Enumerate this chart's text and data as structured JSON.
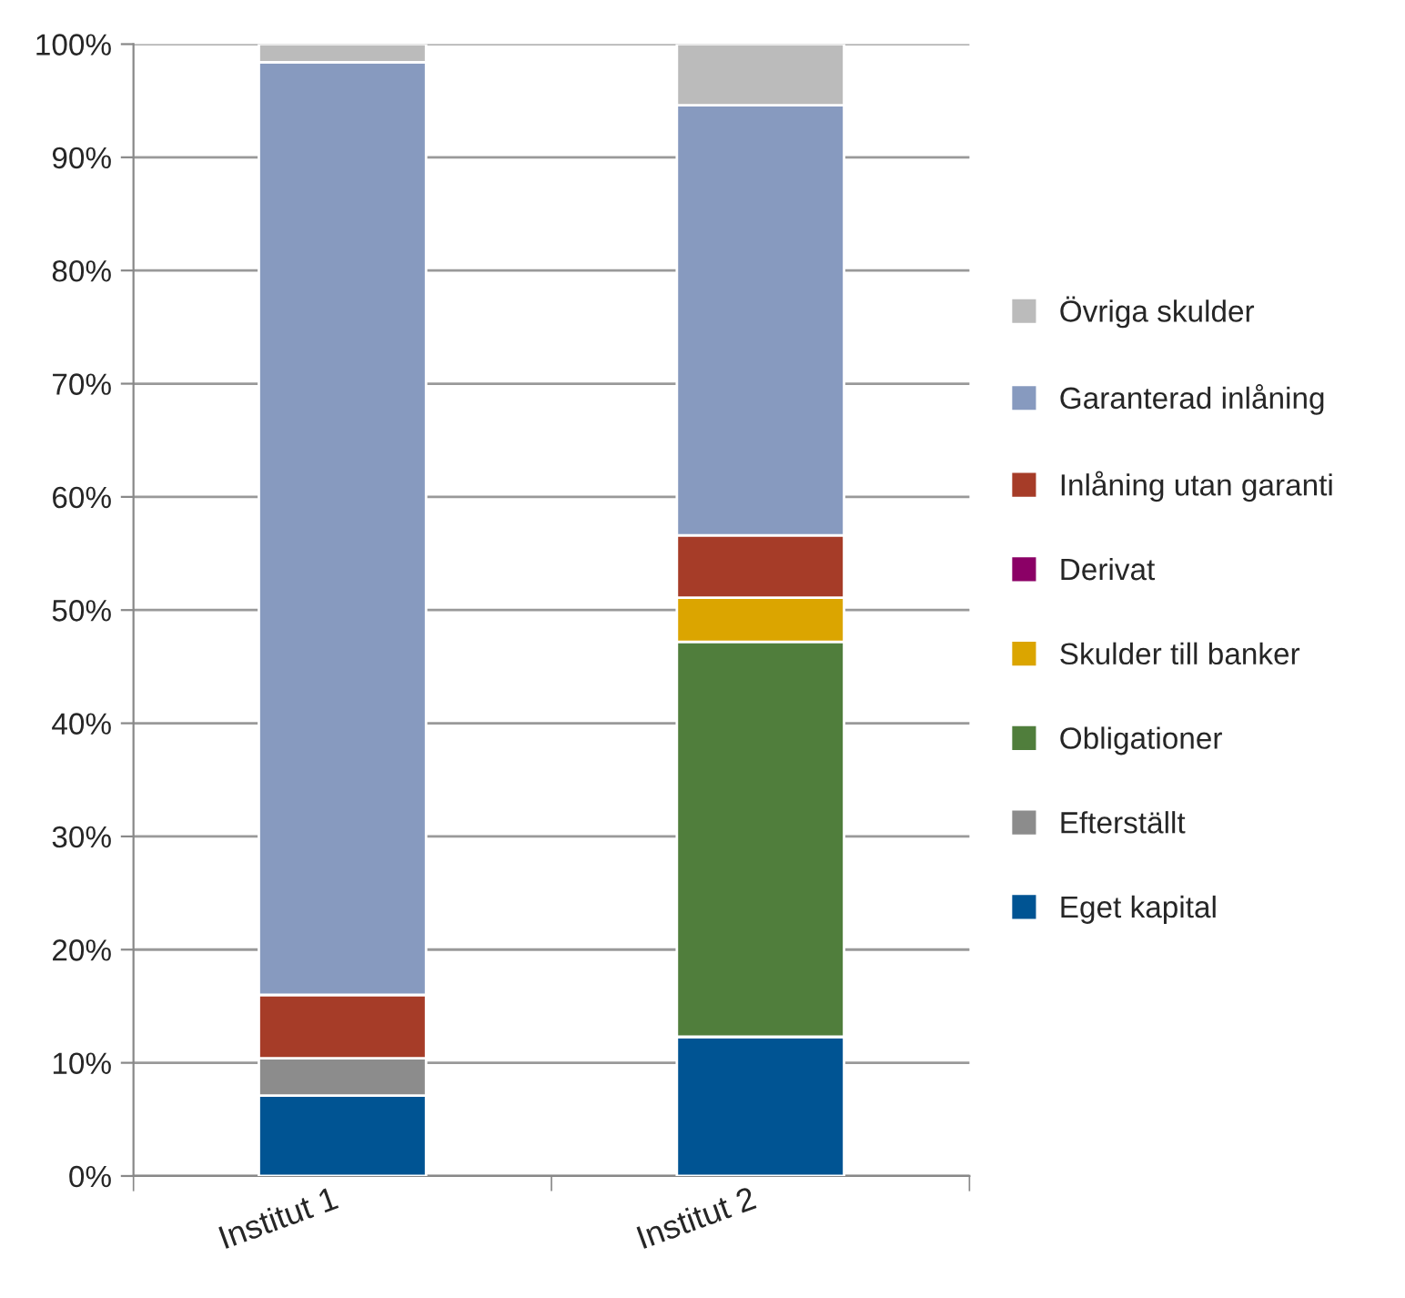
{
  "chart_data": {
    "type": "bar",
    "stacked": true,
    "categories": [
      "Institut 1",
      "Institut 2"
    ],
    "series": [
      {
        "name": "Eget kapital",
        "color": "#005493",
        "values": [
          7.1,
          12.3
        ]
      },
      {
        "name": "Efterställt",
        "color": "#8c8c8c",
        "values": [
          3.3,
          0
        ]
      },
      {
        "name": "Obligationer",
        "color": "#507e3c",
        "values": [
          0,
          34.9
        ]
      },
      {
        "name": "Skulder till banker",
        "color": "#dba500",
        "values": [
          0,
          3.9
        ]
      },
      {
        "name": "Derivat",
        "color": "#8b0066",
        "values": [
          0,
          0
        ]
      },
      {
        "name": "Inlåning utan garanti",
        "color": "#a63c28",
        "values": [
          5.6,
          5.5
        ]
      },
      {
        "name": "Garanterad inlåning",
        "color": "#879abf",
        "values": [
          82.4,
          38.0
        ]
      },
      {
        "name": "Övriga skulder",
        "color": "#bbbbbb",
        "values": [
          1.6,
          5.4
        ]
      }
    ],
    "ylim": [
      0,
      100
    ],
    "yticks": [
      {
        "value": 0,
        "label": "0%"
      },
      {
        "value": 10,
        "label": "10%"
      },
      {
        "value": 20,
        "label": "20%"
      },
      {
        "value": 30,
        "label": "30%"
      },
      {
        "value": 40,
        "label": "40%"
      },
      {
        "value": 50,
        "label": "50%"
      },
      {
        "value": 60,
        "label": "60%"
      },
      {
        "value": 70,
        "label": "70%"
      },
      {
        "value": 80,
        "label": "80%"
      },
      {
        "value": 90,
        "label": "90%"
      },
      {
        "value": 100,
        "label": "100%"
      }
    ],
    "grid": "y",
    "legend": "right"
  }
}
